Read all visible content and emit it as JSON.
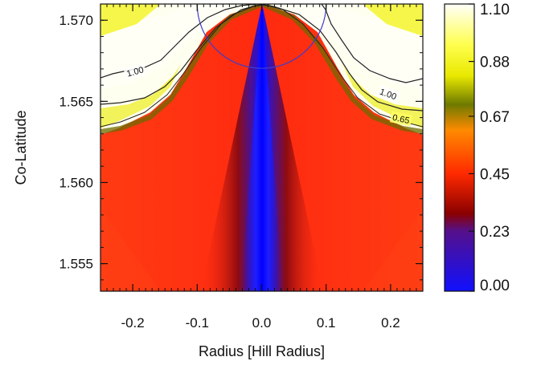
{
  "chart_data": {
    "type": "heatmap",
    "xlabel": "Radius [Hill Radius]",
    "ylabel": "Co-Latitude",
    "xlim": [
      -0.25,
      0.25
    ],
    "ylim": [
      1.5533,
      1.571
    ],
    "x_ticks": [
      "-0.2",
      "-0.1",
      "0.0",
      "0.1",
      "0.2"
    ],
    "x_tick_values": [
      -0.2,
      -0.1,
      0.0,
      0.1,
      0.2
    ],
    "y_ticks": [
      "1.570",
      "1.565",
      "1.560",
      "1.555"
    ],
    "y_tick_values": [
      1.57,
      1.565,
      1.56,
      1.555
    ],
    "colorbar": {
      "range": [
        0.0,
        1.1
      ],
      "tick_labels": [
        "1.10",
        "0.88",
        "0.67",
        "0.45",
        "0.23",
        "0.00"
      ],
      "tick_values": [
        1.1,
        0.88,
        0.67,
        0.45,
        0.23,
        0.0
      ],
      "colormap": [
        {
          "v": 0.0,
          "color": "#1010ff"
        },
        {
          "v": 0.23,
          "color": "#55108a"
        },
        {
          "v": 0.3,
          "color": "#8a0000"
        },
        {
          "v": 0.45,
          "color": "#ff2a00"
        },
        {
          "v": 0.62,
          "color": "#ff8a00"
        },
        {
          "v": 0.72,
          "color": "#6e7a00"
        },
        {
          "v": 0.82,
          "color": "#e8e800"
        },
        {
          "v": 0.95,
          "color": "#ffff50"
        },
        {
          "v": 1.1,
          "color": "#fffffa"
        }
      ]
    },
    "contours": [
      {
        "level_label": "1.00"
      },
      {
        "level_label": "1.00"
      },
      {
        "level_label": "0.65"
      }
    ],
    "hill_circle": {
      "center": [
        0.0,
        1.571
      ],
      "radius_hill": 0.1,
      "color": "#3d3dcc"
    }
  }
}
